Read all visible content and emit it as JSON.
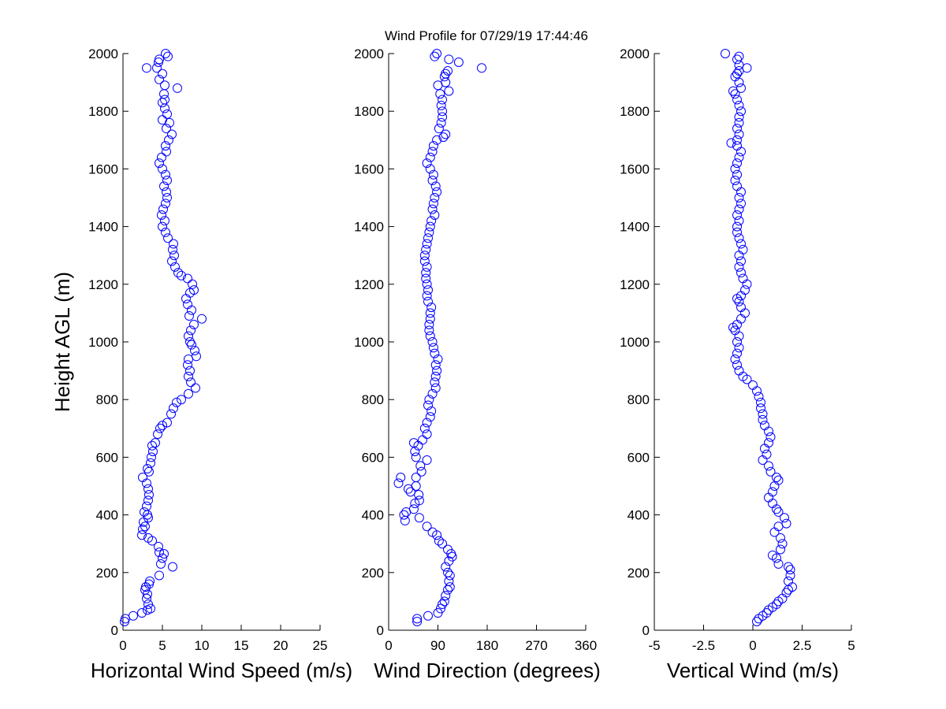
{
  "figure": {
    "title": "Wind Profile for  07/29/19 17:44:46",
    "marker_color": "#0000ff",
    "background": "#ffffff"
  },
  "chart_data": [
    {
      "type": "scatter",
      "title": "",
      "xlabel": "Horizontal Wind Speed (m/s)",
      "ylabel": "Height AGL (m)",
      "xlim": [
        0,
        25
      ],
      "ylim": [
        0,
        2000
      ],
      "xticks": [
        "0",
        "5",
        "10",
        "15",
        "20",
        "25"
      ],
      "yticks": [
        "0",
        "200",
        "400",
        "600",
        "800",
        "1000",
        "1200",
        "1400",
        "1600",
        "1800",
        "2000"
      ],
      "points": [
        [
          0.2,
          30
        ],
        [
          0.3,
          40
        ],
        [
          1.3,
          50
        ],
        [
          2.4,
          60
        ],
        [
          3.1,
          70
        ],
        [
          3.5,
          75
        ],
        [
          3.2,
          90
        ],
        [
          3,
          110
        ],
        [
          3.1,
          125
        ],
        [
          2.8,
          140
        ],
        [
          2.9,
          150
        ],
        [
          3.3,
          160
        ],
        [
          3.4,
          170
        ],
        [
          4.6,
          190
        ],
        [
          6.3,
          220
        ],
        [
          4.8,
          230
        ],
        [
          5,
          250
        ],
        [
          5.2,
          265
        ],
        [
          4.6,
          270
        ],
        [
          4.5,
          290
        ],
        [
          3.7,
          310
        ],
        [
          3.2,
          320
        ],
        [
          2.4,
          330
        ],
        [
          2.5,
          350
        ],
        [
          2.8,
          360
        ],
        [
          2.6,
          375
        ],
        [
          3.2,
          390
        ],
        [
          3.1,
          400
        ],
        [
          2.7,
          410
        ],
        [
          3,
          430
        ],
        [
          3.2,
          450
        ],
        [
          3.3,
          470
        ],
        [
          3.2,
          490
        ],
        [
          3,
          510
        ],
        [
          2.5,
          530
        ],
        [
          3.3,
          550
        ],
        [
          3.1,
          560
        ],
        [
          3.5,
          580
        ],
        [
          3.6,
          600
        ],
        [
          3.8,
          620
        ],
        [
          3.7,
          640
        ],
        [
          4.1,
          650
        ],
        [
          4.4,
          680
        ],
        [
          4.7,
          700
        ],
        [
          5,
          710
        ],
        [
          5.6,
          720
        ],
        [
          6.1,
          750
        ],
        [
          6.4,
          770
        ],
        [
          6.8,
          790
        ],
        [
          7.4,
          800
        ],
        [
          8.3,
          820
        ],
        [
          9.2,
          840
        ],
        [
          8.6,
          860
        ],
        [
          8.3,
          880
        ],
        [
          8.5,
          900
        ],
        [
          8.2,
          920
        ],
        [
          8.3,
          940
        ],
        [
          9.3,
          950
        ],
        [
          9.1,
          970
        ],
        [
          8.7,
          990
        ],
        [
          8.5,
          1000
        ],
        [
          8.3,
          1020
        ],
        [
          8.6,
          1040
        ],
        [
          9,
          1060
        ],
        [
          10,
          1080
        ],
        [
          8.4,
          1090
        ],
        [
          8.7,
          1110
        ],
        [
          8.2,
          1130
        ],
        [
          8,
          1150
        ],
        [
          8.5,
          1170
        ],
        [
          9,
          1180
        ],
        [
          8.8,
          1200
        ],
        [
          8.2,
          1220
        ],
        [
          7.4,
          1230
        ],
        [
          7,
          1240
        ],
        [
          6.6,
          1260
        ],
        [
          6.2,
          1280
        ],
        [
          6.5,
          1300
        ],
        [
          6.3,
          1320
        ],
        [
          6.4,
          1340
        ],
        [
          5.7,
          1360
        ],
        [
          5.4,
          1380
        ],
        [
          5,
          1400
        ],
        [
          5.3,
          1420
        ],
        [
          4.9,
          1440
        ],
        [
          5.1,
          1460
        ],
        [
          5.4,
          1480
        ],
        [
          5.6,
          1500
        ],
        [
          5.5,
          1520
        ],
        [
          5.2,
          1540
        ],
        [
          5.6,
          1560
        ],
        [
          5.4,
          1580
        ],
        [
          5,
          1600
        ],
        [
          4.6,
          1620
        ],
        [
          4.9,
          1640
        ],
        [
          5.5,
          1660
        ],
        [
          5.4,
          1680
        ],
        [
          5.8,
          1700
        ],
        [
          6.2,
          1720
        ],
        [
          5.5,
          1740
        ],
        [
          5.9,
          1760
        ],
        [
          5,
          1770
        ],
        [
          5.6,
          1790
        ],
        [
          5.3,
          1810
        ],
        [
          5,
          1830
        ],
        [
          5.3,
          1840
        ],
        [
          5.2,
          1860
        ],
        [
          6.9,
          1880
        ],
        [
          5.3,
          1890
        ],
        [
          4.6,
          1910
        ],
        [
          5,
          1930
        ],
        [
          4.3,
          1950
        ],
        [
          3,
          1950
        ],
        [
          4.5,
          1970
        ],
        [
          4.6,
          1980
        ],
        [
          5.7,
          1990
        ],
        [
          5.4,
          2000
        ]
      ]
    },
    {
      "type": "scatter",
      "title": "",
      "xlabel": "Wind Direction (degrees)",
      "ylabel": "",
      "xlim": [
        0,
        360
      ],
      "ylim": [
        0,
        2000
      ],
      "xticks": [
        "0",
        "90",
        "180",
        "270",
        "360"
      ],
      "yticks": [
        "0",
        "200",
        "400",
        "600",
        "800",
        "1000",
        "1200",
        "1400",
        "1600",
        "1800",
        "2000"
      ],
      "points": [
        [
          52,
          30
        ],
        [
          52,
          40
        ],
        [
          72,
          50
        ],
        [
          90,
          60
        ],
        [
          95,
          75
        ],
        [
          98,
          90
        ],
        [
          102,
          100
        ],
        [
          104,
          120
        ],
        [
          108,
          140
        ],
        [
          112,
          150
        ],
        [
          110,
          170
        ],
        [
          112,
          190
        ],
        [
          108,
          200
        ],
        [
          104,
          220
        ],
        [
          110,
          240
        ],
        [
          116,
          255
        ],
        [
          114,
          265
        ],
        [
          108,
          280
        ],
        [
          98,
          300
        ],
        [
          92,
          310
        ],
        [
          88,
          330
        ],
        [
          80,
          340
        ],
        [
          70,
          360
        ],
        [
          56,
          390
        ],
        [
          30,
          380
        ],
        [
          28,
          400
        ],
        [
          32,
          410
        ],
        [
          46,
          420
        ],
        [
          48,
          440
        ],
        [
          56,
          450
        ],
        [
          55,
          470
        ],
        [
          40,
          480
        ],
        [
          36,
          490
        ],
        [
          50,
          500
        ],
        [
          18,
          510
        ],
        [
          22,
          530
        ],
        [
          50,
          530
        ],
        [
          60,
          550
        ],
        [
          58,
          570
        ],
        [
          70,
          590
        ],
        [
          50,
          600
        ],
        [
          48,
          620
        ],
        [
          54,
          640
        ],
        [
          46,
          650
        ],
        [
          62,
          660
        ],
        [
          70,
          680
        ],
        [
          66,
          700
        ],
        [
          70,
          720
        ],
        [
          76,
          740
        ],
        [
          78,
          760
        ],
        [
          72,
          780
        ],
        [
          74,
          800
        ],
        [
          80,
          820
        ],
        [
          86,
          840
        ],
        [
          84,
          860
        ],
        [
          86,
          880
        ],
        [
          88,
          900
        ],
        [
          86,
          920
        ],
        [
          90,
          940
        ],
        [
          84,
          960
        ],
        [
          82,
          980
        ],
        [
          80,
          1000
        ],
        [
          76,
          1020
        ],
        [
          74,
          1040
        ],
        [
          74,
          1060
        ],
        [
          76,
          1080
        ],
        [
          76,
          1100
        ],
        [
          78,
          1120
        ],
        [
          72,
          1140
        ],
        [
          70,
          1160
        ],
        [
          72,
          1180
        ],
        [
          70,
          1200
        ],
        [
          68,
          1220
        ],
        [
          68,
          1240
        ],
        [
          70,
          1260
        ],
        [
          66,
          1280
        ],
        [
          66,
          1300
        ],
        [
          68,
          1320
        ],
        [
          70,
          1340
        ],
        [
          72,
          1360
        ],
        [
          74,
          1380
        ],
        [
          76,
          1400
        ],
        [
          78,
          1420
        ],
        [
          84,
          1440
        ],
        [
          80,
          1460
        ],
        [
          82,
          1480
        ],
        [
          84,
          1500
        ],
        [
          88,
          1520
        ],
        [
          86,
          1540
        ],
        [
          80,
          1560
        ],
        [
          82,
          1580
        ],
        [
          76,
          1600
        ],
        [
          70,
          1620
        ],
        [
          76,
          1640
        ],
        [
          80,
          1660
        ],
        [
          82,
          1680
        ],
        [
          88,
          1700
        ],
        [
          100,
          1710
        ],
        [
          104,
          1720
        ],
        [
          92,
          1740
        ],
        [
          96,
          1760
        ],
        [
          98,
          1780
        ],
        [
          98,
          1800
        ],
        [
          96,
          1820
        ],
        [
          98,
          1840
        ],
        [
          94,
          1860
        ],
        [
          110,
          1870
        ],
        [
          90,
          1890
        ],
        [
          104,
          1900
        ],
        [
          102,
          1920
        ],
        [
          104,
          1930
        ],
        [
          108,
          1940
        ],
        [
          170,
          1950
        ],
        [
          128,
          1970
        ],
        [
          110,
          1980
        ],
        [
          84,
          1990
        ],
        [
          88,
          2000
        ]
      ]
    },
    {
      "type": "scatter",
      "title": "",
      "xlabel": "Vertical Wind (m/s)",
      "ylabel": "",
      "xlim": [
        -5,
        5
      ],
      "ylim": [
        0,
        2000
      ],
      "xticks": [
        "-5",
        "-2.5",
        "0",
        "2.5",
        "5"
      ],
      "yticks": [
        "0",
        "200",
        "400",
        "600",
        "800",
        "1000",
        "1200",
        "1400",
        "1600",
        "1800",
        "2000"
      ],
      "points": [
        [
          0.2,
          30
        ],
        [
          0.3,
          40
        ],
        [
          0.5,
          50
        ],
        [
          0.7,
          60
        ],
        [
          0.8,
          70
        ],
        [
          1,
          80
        ],
        [
          1.2,
          90
        ],
        [
          1.3,
          100
        ],
        [
          1.5,
          110
        ],
        [
          1.7,
          130
        ],
        [
          1.8,
          140
        ],
        [
          2,
          150
        ],
        [
          1.8,
          170
        ],
        [
          1.9,
          190
        ],
        [
          1.9,
          210
        ],
        [
          1.8,
          220
        ],
        [
          1.3,
          230
        ],
        [
          1.2,
          250
        ],
        [
          1,
          260
        ],
        [
          1.4,
          280
        ],
        [
          1.5,
          300
        ],
        [
          1.4,
          320
        ],
        [
          1.1,
          340
        ],
        [
          1.3,
          360
        ],
        [
          1.7,
          370
        ],
        [
          1.6,
          390
        ],
        [
          1.3,
          410
        ],
        [
          1.2,
          420
        ],
        [
          1,
          440
        ],
        [
          0.8,
          460
        ],
        [
          1,
          480
        ],
        [
          1.1,
          500
        ],
        [
          1.3,
          520
        ],
        [
          1.2,
          530
        ],
        [
          0.9,
          550
        ],
        [
          0.8,
          570
        ],
        [
          0.5,
          590
        ],
        [
          0.7,
          610
        ],
        [
          0.6,
          630
        ],
        [
          0.8,
          650
        ],
        [
          0.9,
          670
        ],
        [
          0.8,
          690
        ],
        [
          0.6,
          710
        ],
        [
          0.5,
          730
        ],
        [
          0.5,
          750
        ],
        [
          0.4,
          770
        ],
        [
          0.4,
          790
        ],
        [
          0.3,
          810
        ],
        [
          0.2,
          830
        ],
        [
          0,
          850
        ],
        [
          -0.3,
          870
        ],
        [
          -0.5,
          880
        ],
        [
          -0.7,
          900
        ],
        [
          -0.8,
          920
        ],
        [
          -0.9,
          940
        ],
        [
          -0.8,
          960
        ],
        [
          -0.7,
          980
        ],
        [
          -0.8,
          1000
        ],
        [
          -0.7,
          1020
        ],
        [
          -0.9,
          1040
        ],
        [
          -1,
          1050
        ],
        [
          -0.8,
          1060
        ],
        [
          -0.6,
          1080
        ],
        [
          -0.4,
          1100
        ],
        [
          -0.6,
          1120
        ],
        [
          -0.7,
          1140
        ],
        [
          -0.8,
          1150
        ],
        [
          -0.6,
          1160
        ],
        [
          -0.4,
          1180
        ],
        [
          -0.3,
          1200
        ],
        [
          -0.5,
          1220
        ],
        [
          -0.6,
          1240
        ],
        [
          -0.7,
          1260
        ],
        [
          -0.6,
          1280
        ],
        [
          -0.7,
          1300
        ],
        [
          -0.5,
          1320
        ],
        [
          -0.6,
          1340
        ],
        [
          -0.7,
          1360
        ],
        [
          -0.8,
          1380
        ],
        [
          -0.8,
          1400
        ],
        [
          -0.7,
          1420
        ],
        [
          -0.8,
          1440
        ],
        [
          -0.7,
          1460
        ],
        [
          -0.6,
          1480
        ],
        [
          -0.7,
          1500
        ],
        [
          -0.6,
          1520
        ],
        [
          -0.8,
          1540
        ],
        [
          -0.9,
          1560
        ],
        [
          -0.8,
          1580
        ],
        [
          -0.9,
          1600
        ],
        [
          -0.8,
          1620
        ],
        [
          -0.7,
          1640
        ],
        [
          -0.6,
          1660
        ],
        [
          -0.8,
          1680
        ],
        [
          -1.1,
          1690
        ],
        [
          -0.8,
          1700
        ],
        [
          -0.7,
          1720
        ],
        [
          -0.8,
          1740
        ],
        [
          -0.7,
          1760
        ],
        [
          -0.7,
          1780
        ],
        [
          -0.6,
          1800
        ],
        [
          -0.7,
          1820
        ],
        [
          -0.8,
          1840
        ],
        [
          -0.9,
          1860
        ],
        [
          -1,
          1870
        ],
        [
          -0.6,
          1880
        ],
        [
          -0.7,
          1900
        ],
        [
          -0.9,
          1920
        ],
        [
          -0.8,
          1930
        ],
        [
          -0.7,
          1940
        ],
        [
          -0.3,
          1950
        ],
        [
          -0.7,
          1960
        ],
        [
          -0.8,
          1980
        ],
        [
          -0.7,
          1990
        ],
        [
          -1.4,
          2000
        ]
      ]
    }
  ]
}
